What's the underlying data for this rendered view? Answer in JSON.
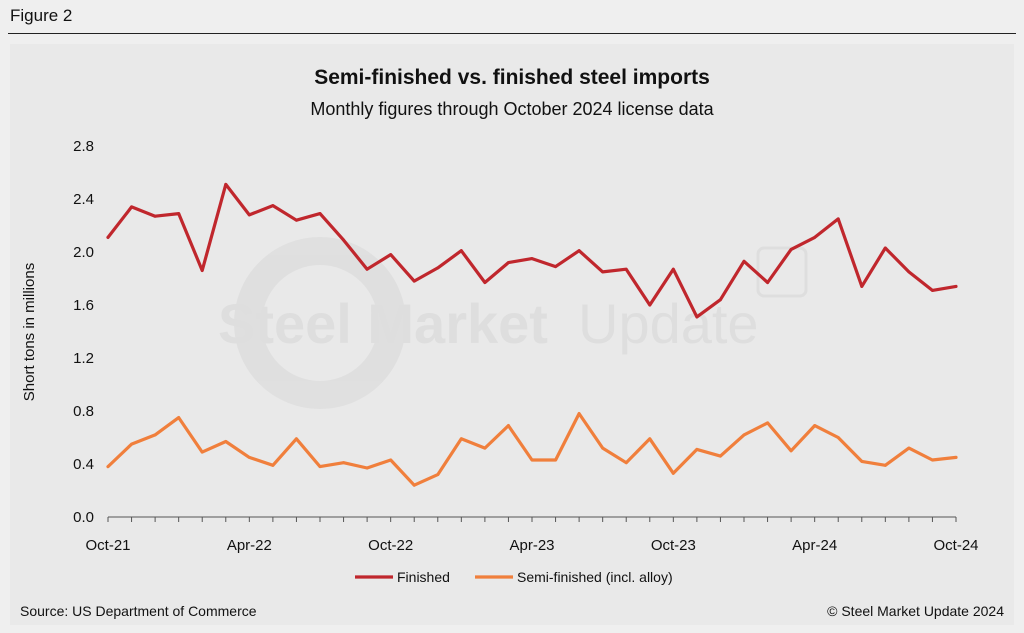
{
  "figure_label": "Figure 2",
  "source": "Source: US Department of Commerce",
  "copyright": "© Steel Market Update 2024",
  "watermark": {
    "bold": "Steel Market",
    "light": "Update"
  },
  "colors": {
    "finished": "#c0272d",
    "semi": "#f07f3c"
  },
  "chart_data": {
    "type": "line",
    "title": "Semi-finished vs. finished steel imports",
    "subtitle": "Monthly figures through October 2024 license data",
    "ylabel": "Short tons in millions",
    "xlabel": "",
    "ylim": [
      0,
      2.8
    ],
    "yticks": [
      "0.0",
      "0.4",
      "0.8",
      "1.2",
      "1.6",
      "2.0",
      "2.4",
      "2.8"
    ],
    "x": [
      "Oct-21",
      "Nov-21",
      "Dec-21",
      "Jan-22",
      "Feb-22",
      "Mar-22",
      "Apr-22",
      "May-22",
      "Jun-22",
      "Jul-22",
      "Aug-22",
      "Sep-22",
      "Oct-22",
      "Nov-22",
      "Dec-22",
      "Jan-23",
      "Feb-23",
      "Mar-23",
      "Apr-23",
      "May-23",
      "Jun-23",
      "Jul-23",
      "Aug-23",
      "Sep-23",
      "Oct-23",
      "Nov-23",
      "Dec-23",
      "Jan-24",
      "Feb-24",
      "Mar-24",
      "Apr-24",
      "May-24",
      "Jun-24",
      "Jul-24",
      "Aug-24",
      "Sep-24",
      "Oct-24"
    ],
    "xtick_labels": [
      "Oct-21",
      "Apr-22",
      "Oct-22",
      "Apr-23",
      "Oct-23",
      "Apr-24",
      "Oct-24"
    ],
    "legend_position": "bottom-center",
    "series": [
      {
        "name": "Finished",
        "values": [
          2.11,
          2.34,
          2.27,
          2.29,
          1.86,
          2.51,
          2.28,
          2.35,
          2.24,
          2.29,
          2.09,
          1.87,
          1.98,
          1.78,
          1.88,
          2.01,
          1.77,
          1.92,
          1.95,
          1.89,
          2.01,
          1.85,
          1.87,
          1.6,
          1.87,
          1.51,
          1.64,
          1.93,
          1.77,
          2.02,
          2.11,
          2.25,
          1.74,
          2.03,
          1.85,
          1.71,
          1.74
        ]
      },
      {
        "name": "Semi-finished (incl. alloy)",
        "values": [
          0.38,
          0.55,
          0.62,
          0.75,
          0.49,
          0.57,
          0.45,
          0.39,
          0.59,
          0.38,
          0.41,
          0.37,
          0.43,
          0.24,
          0.32,
          0.59,
          0.52,
          0.69,
          0.43,
          0.43,
          0.78,
          0.52,
          0.41,
          0.59,
          0.33,
          0.51,
          0.46,
          0.62,
          0.71,
          0.5,
          0.69,
          0.6,
          0.42,
          0.39,
          0.52,
          0.43,
          0.45
        ]
      }
    ]
  }
}
